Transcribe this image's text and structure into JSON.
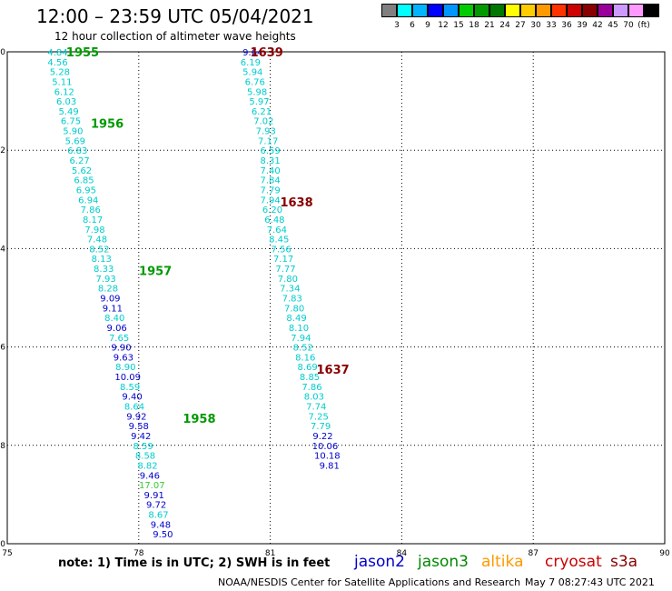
{
  "title": "12:00 – 23:59 UTC 05/04/2021",
  "subtitle": "12 hour collection of altimeter wave heights",
  "legend": {
    "colors": [
      "#808080",
      "#00ffff",
      "#00b4ff",
      "#0000ff",
      "#0096ff",
      "#00cc00",
      "#009900",
      "#007700",
      "#ffff00",
      "#ffcc00",
      "#ff9900",
      "#ff3300",
      "#cc0000",
      "#880000",
      "#990099",
      "#cc99ff",
      "#ff99ff",
      "#000000"
    ],
    "labels": [
      "3",
      "6",
      "9",
      "12",
      "15",
      "18",
      "21",
      "24",
      "27",
      "30",
      "33",
      "36",
      "39",
      "42",
      "45",
      "70",
      "(ft)"
    ]
  },
  "axes": {
    "x_ticks": [
      "75",
      "78",
      "81",
      "84",
      "87",
      "90"
    ],
    "y_ticks": [
      "0",
      "-2",
      "-4",
      "-6",
      "-8",
      "-10"
    ]
  },
  "note": "note:  1) Time is in UTC;  2) SWH is in feet",
  "satellites": [
    {
      "name": "jason2",
      "color": "#0000cc"
    },
    {
      "name": "jason3",
      "color": "#008800"
    },
    {
      "name": "altika",
      "color": "#ff9900"
    },
    {
      "name": "cryosat",
      "color": "#cc0000"
    },
    {
      "name": "s3a",
      "color": "#880000"
    }
  ],
  "footer": "NOAA/NESDIS Center for Satellite Applications and Research",
  "footer_time": "May  7 08:27:43 UTC 2021",
  "tracks": [
    {
      "color": "#009900",
      "time_labels": [
        {
          "text": "1955",
          "lon": 76.72,
          "lat": 0.0
        },
        {
          "text": "1956",
          "lon": 77.28,
          "lat": -1.45
        },
        {
          "text": "1957",
          "lon": 78.38,
          "lat": -4.45
        },
        {
          "text": "1958",
          "lon": 79.38,
          "lat": -7.45
        }
      ],
      "points": [
        {
          "v": "4.84",
          "c": "#00cccc",
          "lon": 76.15,
          "lat": 0.0
        },
        {
          "v": "4.56",
          "c": "#00cccc",
          "lon": 76.15,
          "lat": -0.2
        },
        {
          "v": "5.28",
          "c": "#00cccc",
          "lon": 76.2,
          "lat": -0.4
        },
        {
          "v": "5.11",
          "c": "#00cccc",
          "lon": 76.25,
          "lat": -0.6
        },
        {
          "v": "6.12",
          "c": "#00cccc",
          "lon": 76.3,
          "lat": -0.8
        },
        {
          "v": "6.03",
          "c": "#00cccc",
          "lon": 76.35,
          "lat": -1.0
        },
        {
          "v": "5.49",
          "c": "#00cccc",
          "lon": 76.4,
          "lat": -1.2
        },
        {
          "v": "6.75",
          "c": "#00cccc",
          "lon": 76.45,
          "lat": -1.4
        },
        {
          "v": "5.90",
          "c": "#00cccc",
          "lon": 76.5,
          "lat": -1.6
        },
        {
          "v": "5.69",
          "c": "#00cccc",
          "lon": 76.55,
          "lat": -1.8
        },
        {
          "v": "6.83",
          "c": "#00cccc",
          "lon": 76.6,
          "lat": -2.0
        },
        {
          "v": "6.27",
          "c": "#00cccc",
          "lon": 76.65,
          "lat": -2.2
        },
        {
          "v": "5.62",
          "c": "#00cccc",
          "lon": 76.7,
          "lat": -2.4
        },
        {
          "v": "6.85",
          "c": "#00cccc",
          "lon": 76.75,
          "lat": -2.6
        },
        {
          "v": "6.95",
          "c": "#00cccc",
          "lon": 76.8,
          "lat": -2.8
        },
        {
          "v": "6.94",
          "c": "#00cccc",
          "lon": 76.85,
          "lat": -3.0
        },
        {
          "v": "7.86",
          "c": "#00cccc",
          "lon": 76.9,
          "lat": -3.2
        },
        {
          "v": "8.17",
          "c": "#00cccc",
          "lon": 76.95,
          "lat": -3.4
        },
        {
          "v": "7.98",
          "c": "#00cccc",
          "lon": 77.0,
          "lat": -3.6
        },
        {
          "v": "7.48",
          "c": "#00cccc",
          "lon": 77.05,
          "lat": -3.8
        },
        {
          "v": "8.52",
          "c": "#00cccc",
          "lon": 77.1,
          "lat": -4.0
        },
        {
          "v": "8.13",
          "c": "#00cccc",
          "lon": 77.15,
          "lat": -4.2
        },
        {
          "v": "8.33",
          "c": "#00cccc",
          "lon": 77.2,
          "lat": -4.4
        },
        {
          "v": "7.93",
          "c": "#00cccc",
          "lon": 77.25,
          "lat": -4.6
        },
        {
          "v": "8.28",
          "c": "#00cccc",
          "lon": 77.3,
          "lat": -4.8
        },
        {
          "v": "9.09",
          "c": "#0000cc",
          "lon": 77.35,
          "lat": -5.0
        },
        {
          "v": "9.11",
          "c": "#0000cc",
          "lon": 77.4,
          "lat": -5.2
        },
        {
          "v": "8.40",
          "c": "#00cccc",
          "lon": 77.45,
          "lat": -5.4
        },
        {
          "v": "9.06",
          "c": "#0000cc",
          "lon": 77.5,
          "lat": -5.6
        },
        {
          "v": "7.65",
          "c": "#00cccc",
          "lon": 77.55,
          "lat": -5.8
        },
        {
          "v": "9.90",
          "c": "#0000cc",
          "lon": 77.6,
          "lat": -6.0
        },
        {
          "v": "9.63",
          "c": "#0000cc",
          "lon": 77.65,
          "lat": -6.2
        },
        {
          "v": "8.90",
          "c": "#00cccc",
          "lon": 77.7,
          "lat": -6.4
        },
        {
          "v": "10.09",
          "c": "#0000cc",
          "lon": 77.75,
          "lat": -6.6
        },
        {
          "v": "8.59",
          "c": "#00cccc",
          "lon": 77.8,
          "lat": -6.8
        },
        {
          "v": "9.40",
          "c": "#0000cc",
          "lon": 77.85,
          "lat": -7.0
        },
        {
          "v": "8.64",
          "c": "#00cccc",
          "lon": 77.9,
          "lat": -7.2
        },
        {
          "v": "9.92",
          "c": "#0000cc",
          "lon": 77.95,
          "lat": -7.4
        },
        {
          "v": "9.58",
          "c": "#0000cc",
          "lon": 78.0,
          "lat": -7.6
        },
        {
          "v": "9.42",
          "c": "#0000cc",
          "lon": 78.05,
          "lat": -7.8
        },
        {
          "v": "8.59",
          "c": "#00cccc",
          "lon": 78.1,
          "lat": -8.0
        },
        {
          "v": "8.58",
          "c": "#00cccc",
          "lon": 78.15,
          "lat": -8.2
        },
        {
          "v": "8.82",
          "c": "#00cccc",
          "lon": 78.2,
          "lat": -8.4
        },
        {
          "v": "9.46",
          "c": "#0000cc",
          "lon": 78.25,
          "lat": -8.6
        },
        {
          "v": "17.07",
          "c": "#33cc33",
          "lon": 78.3,
          "lat": -8.8
        },
        {
          "v": "9.91",
          "c": "#0000cc",
          "lon": 78.35,
          "lat": -9.0
        },
        {
          "v": "9.72",
          "c": "#0000cc",
          "lon": 78.4,
          "lat": -9.2
        },
        {
          "v": "8.67",
          "c": "#00cccc",
          "lon": 78.45,
          "lat": -9.4
        },
        {
          "v": "9.48",
          "c": "#0000cc",
          "lon": 78.5,
          "lat": -9.6
        },
        {
          "v": "9.50",
          "c": "#0000cc",
          "lon": 78.55,
          "lat": -9.8
        }
      ]
    },
    {
      "color": "#880000",
      "time_labels": [
        {
          "text": "1639",
          "lon": 80.92,
          "lat": 0.0
        },
        {
          "text": "1638",
          "lon": 81.6,
          "lat": -3.05
        },
        {
          "text": "1637",
          "lon": 82.43,
          "lat": -6.45
        }
      ],
      "points": [
        {
          "v": "9.64",
          "c": "#0000cc",
          "lon": 80.6,
          "lat": 0.0
        },
        {
          "v": "6.19",
          "c": "#00cccc",
          "lon": 80.55,
          "lat": -0.2
        },
        {
          "v": "5.94",
          "c": "#00cccc",
          "lon": 80.6,
          "lat": -0.4
        },
        {
          "v": "6.76",
          "c": "#00cccc",
          "lon": 80.65,
          "lat": -0.6
        },
        {
          "v": "5.98",
          "c": "#00cccc",
          "lon": 80.7,
          "lat": -0.8
        },
        {
          "v": "5.97",
          "c": "#00cccc",
          "lon": 80.75,
          "lat": -1.0
        },
        {
          "v": "6.21",
          "c": "#00cccc",
          "lon": 80.8,
          "lat": -1.2
        },
        {
          "v": "7.02",
          "c": "#00cccc",
          "lon": 80.85,
          "lat": -1.4
        },
        {
          "v": "7.93",
          "c": "#00cccc",
          "lon": 80.9,
          "lat": -1.6
        },
        {
          "v": "7.17",
          "c": "#00cccc",
          "lon": 80.95,
          "lat": -1.8
        },
        {
          "v": "6.59",
          "c": "#00cccc",
          "lon": 81.0,
          "lat": -2.0
        },
        {
          "v": "8.31",
          "c": "#00cccc",
          "lon": 81.0,
          "lat": -2.2
        },
        {
          "v": "7.40",
          "c": "#00cccc",
          "lon": 81.0,
          "lat": -2.4
        },
        {
          "v": "7.84",
          "c": "#00cccc",
          "lon": 81.0,
          "lat": -2.6
        },
        {
          "v": "7.79",
          "c": "#00cccc",
          "lon": 81.0,
          "lat": -2.8
        },
        {
          "v": "7.94",
          "c": "#00cccc",
          "lon": 81.0,
          "lat": -3.0
        },
        {
          "v": "6.20",
          "c": "#00cccc",
          "lon": 81.05,
          "lat": -3.2
        },
        {
          "v": "6.48",
          "c": "#00cccc",
          "lon": 81.1,
          "lat": -3.4
        },
        {
          "v": "7.64",
          "c": "#00cccc",
          "lon": 81.15,
          "lat": -3.6
        },
        {
          "v": "8.45",
          "c": "#00cccc",
          "lon": 81.2,
          "lat": -3.8
        },
        {
          "v": "7.56",
          "c": "#00cccc",
          "lon": 81.25,
          "lat": -4.0
        },
        {
          "v": "7.17",
          "c": "#00cccc",
          "lon": 81.3,
          "lat": -4.2
        },
        {
          "v": "7.77",
          "c": "#00cccc",
          "lon": 81.35,
          "lat": -4.4
        },
        {
          "v": "7.80",
          "c": "#00cccc",
          "lon": 81.4,
          "lat": -4.6
        },
        {
          "v": "7.34",
          "c": "#00cccc",
          "lon": 81.45,
          "lat": -4.8
        },
        {
          "v": "7.83",
          "c": "#00cccc",
          "lon": 81.5,
          "lat": -5.0
        },
        {
          "v": "7.80",
          "c": "#00cccc",
          "lon": 81.55,
          "lat": -5.2
        },
        {
          "v": "8.49",
          "c": "#00cccc",
          "lon": 81.6,
          "lat": -5.4
        },
        {
          "v": "8.10",
          "c": "#00cccc",
          "lon": 81.65,
          "lat": -5.6
        },
        {
          "v": "7.94",
          "c": "#00cccc",
          "lon": 81.7,
          "lat": -5.8
        },
        {
          "v": "8.52",
          "c": "#00cccc",
          "lon": 81.75,
          "lat": -6.0
        },
        {
          "v": "8.16",
          "c": "#00cccc",
          "lon": 81.8,
          "lat": -6.2
        },
        {
          "v": "8.69",
          "c": "#00cccc",
          "lon": 81.85,
          "lat": -6.4
        },
        {
          "v": "8.85",
          "c": "#00cccc",
          "lon": 81.9,
          "lat": -6.6
        },
        {
          "v": "7.86",
          "c": "#00cccc",
          "lon": 81.95,
          "lat": -6.8
        },
        {
          "v": "8.03",
          "c": "#00cccc",
          "lon": 82.0,
          "lat": -7.0
        },
        {
          "v": "7.74",
          "c": "#00cccc",
          "lon": 82.05,
          "lat": -7.2
        },
        {
          "v": "7.25",
          "c": "#00cccc",
          "lon": 82.1,
          "lat": -7.4
        },
        {
          "v": "7.79",
          "c": "#00cccc",
          "lon": 82.15,
          "lat": -7.6
        },
        {
          "v": "9.22",
          "c": "#0000cc",
          "lon": 82.2,
          "lat": -7.8
        },
        {
          "v": "10.06",
          "c": "#0000cc",
          "lon": 82.25,
          "lat": -8.0
        },
        {
          "v": "10.18",
          "c": "#0000cc",
          "lon": 82.3,
          "lat": -8.2
        },
        {
          "v": "9.81",
          "c": "#0000cc",
          "lon": 82.35,
          "lat": -8.4
        }
      ]
    }
  ]
}
